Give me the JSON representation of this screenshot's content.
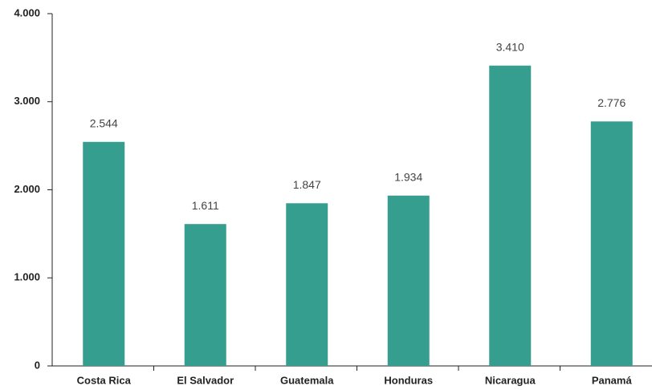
{
  "chart_data": {
    "type": "bar",
    "categories": [
      "Costa Rica",
      "El Salvador",
      "Guatemala",
      "Honduras",
      "Nicaragua",
      "Panamá"
    ],
    "values": [
      2544,
      1611,
      1847,
      1934,
      3410,
      2776
    ],
    "value_labels": [
      "2.544",
      "1.611",
      "1.847",
      "1.934",
      "3.410",
      "2.776"
    ],
    "color": "#359e8f",
    "ylim": [
      0,
      4000
    ],
    "yticks": [
      0,
      {
        "value": 1000,
        "label": "1.000"
      },
      {
        "value": 2000,
        "label": "2.000"
      },
      {
        "value": 3000,
        "label": "3.000"
      },
      {
        "value": 4000,
        "label": "4.000"
      }
    ],
    "grid": false
  }
}
